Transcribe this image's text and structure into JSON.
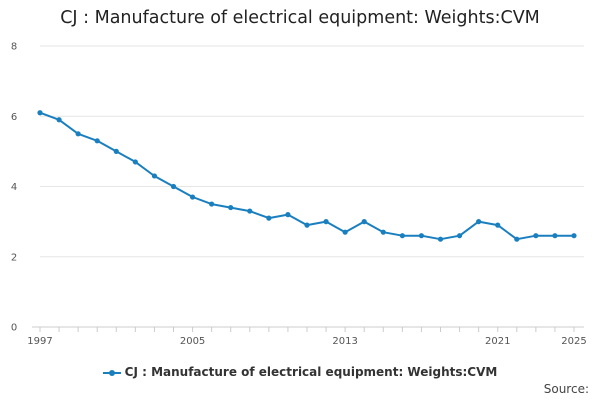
{
  "chart_data": {
    "type": "line",
    "title": "CJ : Manufacture of electrical equipment: Weights:CVM",
    "x": [
      1997,
      1998,
      1999,
      2000,
      2001,
      2002,
      2003,
      2004,
      2005,
      2006,
      2007,
      2008,
      2009,
      2010,
      2011,
      2012,
      2013,
      2014,
      2015,
      2016,
      2017,
      2018,
      2019,
      2020,
      2021,
      2022,
      2023,
      2024,
      2025
    ],
    "series": [
      {
        "name": "CJ : Manufacture of electrical equipment: Weights:CVM",
        "color": "#1a7fbf",
        "values": [
          6.1,
          5.9,
          5.5,
          5.3,
          5.0,
          4.7,
          4.3,
          4.0,
          3.7,
          3.5,
          3.4,
          3.3,
          3.1,
          3.2,
          2.9,
          3.0,
          2.7,
          3.0,
          2.7,
          2.6,
          2.6,
          2.5,
          2.6,
          3.0,
          2.9,
          2.5,
          2.6,
          2.6,
          2.6
        ]
      }
    ],
    "xlim": [
      1997,
      2025
    ],
    "ylim": [
      0,
      8
    ],
    "yticks": [
      0,
      2,
      4,
      6,
      8
    ],
    "xtick_labels": [
      1997,
      2005,
      2013,
      2021,
      2025
    ],
    "grid": "horizontal",
    "legend_position": "bottom",
    "xlabel": "",
    "ylabel": ""
  },
  "source_label": "Source:"
}
